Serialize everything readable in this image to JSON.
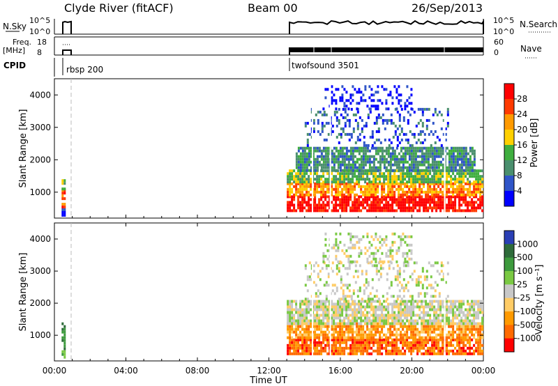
{
  "header": {
    "station": "Clyde River (fitACF)",
    "beam": "Beam 00",
    "date": "26/Sep/2013"
  },
  "strip_labels": {
    "nsky": "N.Sky",
    "nsky_top": "10^5",
    "nsky_bottom": "10^0",
    "nsearch": "N.Search",
    "freq": "Freq.",
    "freq_unit": "[MHz]",
    "freq_top": "18",
    "freq_bottom": "8",
    "nave": "Nave",
    "nave_top": "60",
    "nave_bottom": "0",
    "cpid": "CPID"
  },
  "cpid_modes": [
    {
      "name": "rbsp 200",
      "start_hour": 0.4
    },
    {
      "name": "twofsound 3501",
      "start_hour": 13.0
    }
  ],
  "chart_data": [
    {
      "type": "heatmap",
      "name": "power",
      "ylabel": "Slant Range [km]",
      "xlabel": "Time UT",
      "xlim": [
        0,
        24
      ],
      "ylim": [
        200,
        4500
      ],
      "x_ticks": [
        "00:00",
        "04:00",
        "08:00",
        "12:00",
        "16:00",
        "20:00",
        "00:00"
      ],
      "y_ticks": [
        1000,
        2000,
        3000,
        4000
      ],
      "colorbar_label": "Power [dB]",
      "colorbar_ticks": [
        "4",
        "8",
        "12",
        "16",
        "20",
        "24",
        "28"
      ],
      "colorbar_colors": [
        "#0000ff",
        "#2f55c8",
        "#4a8f6e",
        "#3fae3f",
        "#ffd000",
        "#ff9a00",
        "#ff3a00",
        "#ff0000"
      ],
      "bands": [
        {
          "t0": 0.4,
          "t1": 0.55,
          "r0": 300,
          "r1": 500,
          "level": 0
        },
        {
          "t0": 0.4,
          "t1": 0.55,
          "r0": 500,
          "r1": 1100,
          "level": 6
        },
        {
          "t0": 0.4,
          "t1": 0.55,
          "r0": 1100,
          "r1": 1400,
          "level": 3
        },
        {
          "t0": 13.0,
          "t1": 24.0,
          "r0": 400,
          "r1": 900,
          "level": 7
        },
        {
          "t0": 13.0,
          "t1": 24.0,
          "r0": 900,
          "r1": 1300,
          "level": 5
        },
        {
          "t0": 13.0,
          "t1": 24.0,
          "r0": 1300,
          "r1": 1700,
          "level": 3
        },
        {
          "t0": 13.5,
          "t1": 23.5,
          "r0": 1700,
          "r1": 2400,
          "level": 2
        },
        {
          "t0": 14.0,
          "t1": 22.0,
          "r0": 2400,
          "r1": 3600,
          "level": 1
        },
        {
          "t0": 15.0,
          "t1": 20.0,
          "r0": 3600,
          "r1": 4300,
          "level": 0
        }
      ]
    },
    {
      "type": "heatmap",
      "name": "velocity",
      "ylabel": "Slant Range [km]",
      "xlabel": "Time UT",
      "xlim": [
        0,
        24
      ],
      "ylim": [
        200,
        4500
      ],
      "x_ticks": [
        "00:00",
        "04:00",
        "08:00",
        "12:00",
        "16:00",
        "20:00",
        "00:00"
      ],
      "y_ticks": [
        1000,
        2000,
        3000,
        4000
      ],
      "colorbar_label": "Velocity [m s⁻¹]",
      "colorbar_ticks": [
        "1000",
        "500",
        "100",
        "25",
        "-25",
        "-100",
        "-500",
        "-1000"
      ],
      "colorbar_colors": [
        "#2a3fb5",
        "#2e6b3a",
        "#3d9a3d",
        "#7ac943",
        "#c8c8c8",
        "#ffcc66",
        "#ff9a00",
        "#ff6a00",
        "#ff0000"
      ],
      "bands": [
        {
          "t0": 0.4,
          "t1": 0.55,
          "r0": 300,
          "r1": 1400,
          "level": 2
        },
        {
          "t0": 13.0,
          "t1": 24.0,
          "r0": 400,
          "r1": 900,
          "level": 7
        },
        {
          "t0": 13.0,
          "t1": 24.0,
          "r0": 900,
          "r1": 1400,
          "level": 6
        },
        {
          "t0": 13.0,
          "t1": 24.0,
          "r0": 1400,
          "r1": 2100,
          "level": 4
        },
        {
          "t0": 14.0,
          "t1": 22.0,
          "r0": 2100,
          "r1": 3300,
          "level": 4
        },
        {
          "t0": 15.0,
          "t1": 20.0,
          "r0": 3300,
          "r1": 4200,
          "level": 4
        }
      ]
    }
  ]
}
